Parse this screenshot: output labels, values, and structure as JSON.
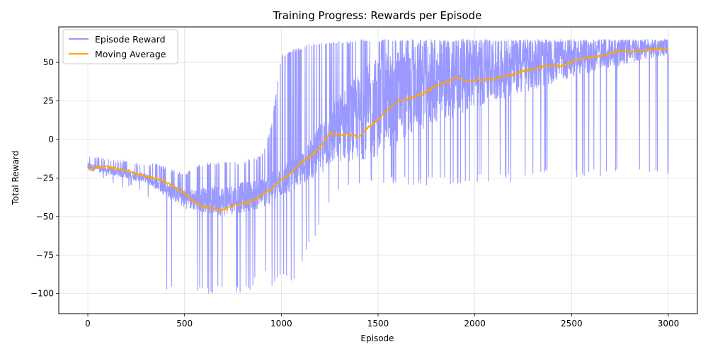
{
  "chart_data": {
    "type": "line",
    "title": "Training Progress: Rewards per Episode",
    "xlabel": "Episode",
    "ylabel": "Total Reward",
    "xlim": [
      -150,
      3150
    ],
    "ylim": [
      -113,
      73
    ],
    "xticks": [
      0,
      500,
      1000,
      1500,
      2000,
      2500,
      3000
    ],
    "xtick_labels": [
      "0",
      "500",
      "1000",
      "1500",
      "2000",
      "2500",
      "3000"
    ],
    "yticks": [
      -100,
      -75,
      -50,
      -25,
      0,
      25,
      50
    ],
    "ytick_labels": [
      "−100",
      "−75",
      "−50",
      "−25",
      "0",
      "25",
      "50"
    ],
    "grid": true,
    "legend_position": "top-left",
    "episodes": 3000,
    "series": [
      {
        "name": "Episode Reward",
        "color": "#8080ff",
        "style": "noisy-envelope",
        "x": [
          0,
          50,
          100,
          150,
          200,
          250,
          300,
          350,
          400,
          450,
          500,
          550,
          600,
          650,
          700,
          750,
          800,
          850,
          900,
          950,
          1000,
          1050,
          1100,
          1150,
          1200,
          1250,
          1300,
          1350,
          1400,
          1450,
          1500,
          1600,
          1700,
          1800,
          1900,
          2000,
          2200,
          2400,
          2600,
          2800,
          3000
        ],
        "upper": [
          -10,
          -11,
          -12,
          -13,
          -14,
          -15,
          -16,
          -15,
          -18,
          -20,
          -22,
          -18,
          -15,
          -15,
          -14,
          -15,
          -14,
          -12,
          -10,
          10,
          55,
          58,
          60,
          62,
          63,
          64,
          64,
          64,
          65,
          65,
          65,
          65,
          65,
          65,
          65,
          65,
          65,
          65,
          65,
          65,
          65
        ],
        "lower": [
          -22,
          -24,
          -27,
          -30,
          -33,
          -36,
          -40,
          -45,
          -100,
          -100,
          -100,
          -100,
          -100,
          -100,
          -100,
          -100,
          -100,
          -100,
          -80,
          -100,
          -90,
          -95,
          -85,
          -70,
          -56,
          -40,
          -36,
          -35,
          -33,
          -32,
          -30,
          -30,
          -30,
          -30,
          -30,
          -28,
          -28,
          -25,
          -25,
          -25,
          -25
        ],
        "dense_band": [
          [
            0,
            -15,
            -20
          ],
          [
            300,
            -22,
            -28
          ],
          [
            500,
            -32,
            -45
          ],
          [
            700,
            -30,
            -50
          ],
          [
            900,
            -25,
            -45
          ],
          [
            1100,
            -10,
            -30
          ],
          [
            1300,
            30,
            -15
          ],
          [
            1500,
            55,
            -12
          ],
          [
            1700,
            62,
            5
          ],
          [
            2000,
            64,
            20
          ],
          [
            2500,
            65,
            40
          ],
          [
            3000,
            65,
            55
          ]
        ]
      },
      {
        "name": "Moving Average",
        "color": "#ffa500",
        "x": [
          0,
          50,
          100,
          150,
          200,
          250,
          300,
          350,
          400,
          450,
          500,
          550,
          600,
          650,
          700,
          750,
          800,
          850,
          900,
          950,
          1000,
          1050,
          1100,
          1150,
          1200,
          1250,
          1300,
          1350,
          1400,
          1450,
          1500,
          1550,
          1600,
          1650,
          1700,
          1750,
          1800,
          1850,
          1900,
          1950,
          2000,
          2050,
          2100,
          2150,
          2200,
          2250,
          2300,
          2350,
          2400,
          2450,
          2500,
          2550,
          2600,
          2650,
          2700,
          2750,
          2800,
          2850,
          2900,
          2950,
          3000
        ],
        "values": [
          -19,
          -18,
          -18,
          -19,
          -20,
          -22,
          -24,
          -25,
          -27,
          -31,
          -35,
          -40,
          -44,
          -45,
          -46,
          -43,
          -42,
          -40,
          -36,
          -32,
          -26,
          -22,
          -15,
          -11,
          -5,
          4,
          3,
          3,
          2,
          8,
          13,
          19,
          25,
          26,
          28,
          31,
          35,
          37,
          40,
          38,
          38,
          39,
          39,
          41,
          42,
          44,
          46,
          47,
          48,
          48,
          50,
          53,
          53,
          54,
          56,
          58,
          57,
          58,
          58,
          59,
          59
        ]
      }
    ]
  }
}
